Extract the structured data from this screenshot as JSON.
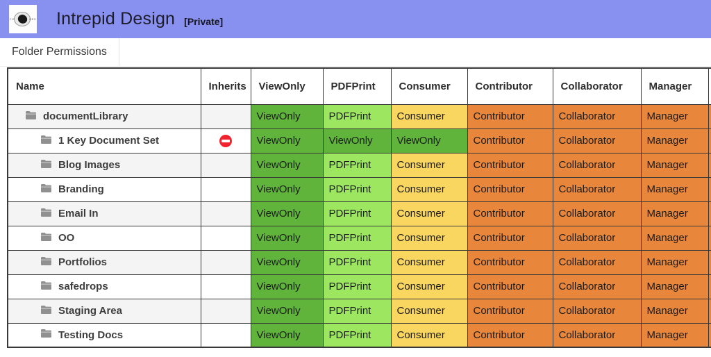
{
  "header": {
    "title": "Intrepid Design",
    "badge": "[Private]",
    "logo": "intrepid-design-logo"
  },
  "tabs": [
    {
      "label": "Folder Permissions",
      "active": true
    }
  ],
  "colors": {
    "header_bg": "#8890f0",
    "green": "#60b43c",
    "light_green": "#9ce660",
    "yellow": "#f9d65f",
    "orange": "#e8873b",
    "row_alt": "#f4f4f4",
    "row_default": "#ffffff",
    "border": "#383838",
    "no_entry_red": "#f2232e",
    "folder_gray": "#909090"
  },
  "table": {
    "columns": [
      "Name",
      "Inherits",
      "ViewOnly",
      "PDFPrint",
      "Consumer",
      "Contributor",
      "Collaborator",
      "Manager"
    ],
    "rows": [
      {
        "name": "documentLibrary",
        "level": 0,
        "inherits_blocked": false,
        "alt": true,
        "cells": [
          {
            "label": "ViewOnly",
            "color": "green"
          },
          {
            "label": "PDFPrint",
            "color": "light_green"
          },
          {
            "label": "Consumer",
            "color": "yellow"
          },
          {
            "label": "Contributor",
            "color": "orange"
          },
          {
            "label": "Collaborator",
            "color": "orange"
          },
          {
            "label": "Manager",
            "color": "orange"
          }
        ]
      },
      {
        "name": "1 Key Document Set",
        "level": 1,
        "inherits_blocked": true,
        "alt": false,
        "cells": [
          {
            "label": "ViewOnly",
            "color": "green"
          },
          {
            "label": "ViewOnly",
            "color": "green"
          },
          {
            "label": "ViewOnly",
            "color": "green"
          },
          {
            "label": "Contributor",
            "color": "orange"
          },
          {
            "label": "Collaborator",
            "color": "orange"
          },
          {
            "label": "Manager",
            "color": "orange"
          }
        ]
      },
      {
        "name": "Blog Images",
        "level": 1,
        "inherits_blocked": false,
        "alt": true,
        "cells": [
          {
            "label": "ViewOnly",
            "color": "green"
          },
          {
            "label": "PDFPrint",
            "color": "light_green"
          },
          {
            "label": "Consumer",
            "color": "yellow"
          },
          {
            "label": "Contributor",
            "color": "orange"
          },
          {
            "label": "Collaborator",
            "color": "orange"
          },
          {
            "label": "Manager",
            "color": "orange"
          }
        ]
      },
      {
        "name": "Branding",
        "level": 1,
        "inherits_blocked": false,
        "alt": false,
        "cells": [
          {
            "label": "ViewOnly",
            "color": "green"
          },
          {
            "label": "PDFPrint",
            "color": "light_green"
          },
          {
            "label": "Consumer",
            "color": "yellow"
          },
          {
            "label": "Contributor",
            "color": "orange"
          },
          {
            "label": "Collaborator",
            "color": "orange"
          },
          {
            "label": "Manager",
            "color": "orange"
          }
        ]
      },
      {
        "name": "Email In",
        "level": 1,
        "inherits_blocked": false,
        "alt": true,
        "cells": [
          {
            "label": "ViewOnly",
            "color": "green"
          },
          {
            "label": "PDFPrint",
            "color": "light_green"
          },
          {
            "label": "Consumer",
            "color": "yellow"
          },
          {
            "label": "Contributor",
            "color": "orange"
          },
          {
            "label": "Collaborator",
            "color": "orange"
          },
          {
            "label": "Manager",
            "color": "orange"
          }
        ]
      },
      {
        "name": "OO",
        "level": 1,
        "inherits_blocked": false,
        "alt": false,
        "cells": [
          {
            "label": "ViewOnly",
            "color": "green"
          },
          {
            "label": "PDFPrint",
            "color": "light_green"
          },
          {
            "label": "Consumer",
            "color": "yellow"
          },
          {
            "label": "Contributor",
            "color": "orange"
          },
          {
            "label": "Collaborator",
            "color": "orange"
          },
          {
            "label": "Manager",
            "color": "orange"
          }
        ]
      },
      {
        "name": "Portfolios",
        "level": 1,
        "inherits_blocked": false,
        "alt": true,
        "cells": [
          {
            "label": "ViewOnly",
            "color": "green"
          },
          {
            "label": "PDFPrint",
            "color": "light_green"
          },
          {
            "label": "Consumer",
            "color": "yellow"
          },
          {
            "label": "Contributor",
            "color": "orange"
          },
          {
            "label": "Collaborator",
            "color": "orange"
          },
          {
            "label": "Manager",
            "color": "orange"
          }
        ]
      },
      {
        "name": "safedrops",
        "level": 1,
        "inherits_blocked": false,
        "alt": false,
        "cells": [
          {
            "label": "ViewOnly",
            "color": "green"
          },
          {
            "label": "PDFPrint",
            "color": "light_green"
          },
          {
            "label": "Consumer",
            "color": "yellow"
          },
          {
            "label": "Contributor",
            "color": "orange"
          },
          {
            "label": "Collaborator",
            "color": "orange"
          },
          {
            "label": "Manager",
            "color": "orange"
          }
        ]
      },
      {
        "name": "Staging Area",
        "level": 1,
        "inherits_blocked": false,
        "alt": true,
        "cells": [
          {
            "label": "ViewOnly",
            "color": "green"
          },
          {
            "label": "PDFPrint",
            "color": "light_green"
          },
          {
            "label": "Consumer",
            "color": "yellow"
          },
          {
            "label": "Contributor",
            "color": "orange"
          },
          {
            "label": "Collaborator",
            "color": "orange"
          },
          {
            "label": "Manager",
            "color": "orange"
          }
        ]
      },
      {
        "name": "Testing Docs",
        "level": 1,
        "inherits_blocked": false,
        "alt": false,
        "cells": [
          {
            "label": "ViewOnly",
            "color": "green"
          },
          {
            "label": "PDFPrint",
            "color": "light_green"
          },
          {
            "label": "Consumer",
            "color": "yellow"
          },
          {
            "label": "Contributor",
            "color": "orange"
          },
          {
            "label": "Collaborator",
            "color": "orange"
          },
          {
            "label": "Manager",
            "color": "orange"
          }
        ]
      }
    ]
  }
}
